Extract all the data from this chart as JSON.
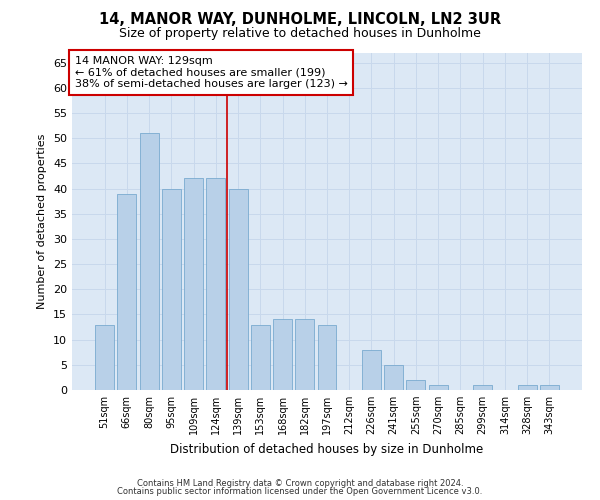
{
  "title": "14, MANOR WAY, DUNHOLME, LINCOLN, LN2 3UR",
  "subtitle": "Size of property relative to detached houses in Dunholme",
  "xlabel": "Distribution of detached houses by size in Dunholme",
  "ylabel": "Number of detached properties",
  "categories": [
    "51sqm",
    "66sqm",
    "80sqm",
    "95sqm",
    "109sqm",
    "124sqm",
    "139sqm",
    "153sqm",
    "168sqm",
    "182sqm",
    "197sqm",
    "212sqm",
    "226sqm",
    "241sqm",
    "255sqm",
    "270sqm",
    "285sqm",
    "299sqm",
    "314sqm",
    "328sqm",
    "343sqm"
  ],
  "values": [
    13,
    39,
    51,
    40,
    42,
    42,
    40,
    13,
    14,
    14,
    13,
    0,
    8,
    5,
    2,
    1,
    0,
    1,
    0,
    1,
    1
  ],
  "bar_color": "#b8d0e8",
  "bar_edge_color": "#7aaacf",
  "ylim": [
    0,
    67
  ],
  "yticks": [
    0,
    5,
    10,
    15,
    20,
    25,
    30,
    35,
    40,
    45,
    50,
    55,
    60,
    65
  ],
  "vline_x": 5.5,
  "vline_color": "#cc0000",
  "annotation_text": "14 MANOR WAY: 129sqm\n← 61% of detached houses are smaller (199)\n38% of semi-detached houses are larger (123) →",
  "annotation_box_color": "#ffffff",
  "annotation_border_color": "#cc0000",
  "grid_color": "#c8d8ec",
  "plot_bg_color": "#dce8f5",
  "fig_bg_color": "#ffffff",
  "footer_line1": "Contains HM Land Registry data © Crown copyright and database right 2024.",
  "footer_line2": "Contains public sector information licensed under the Open Government Licence v3.0."
}
